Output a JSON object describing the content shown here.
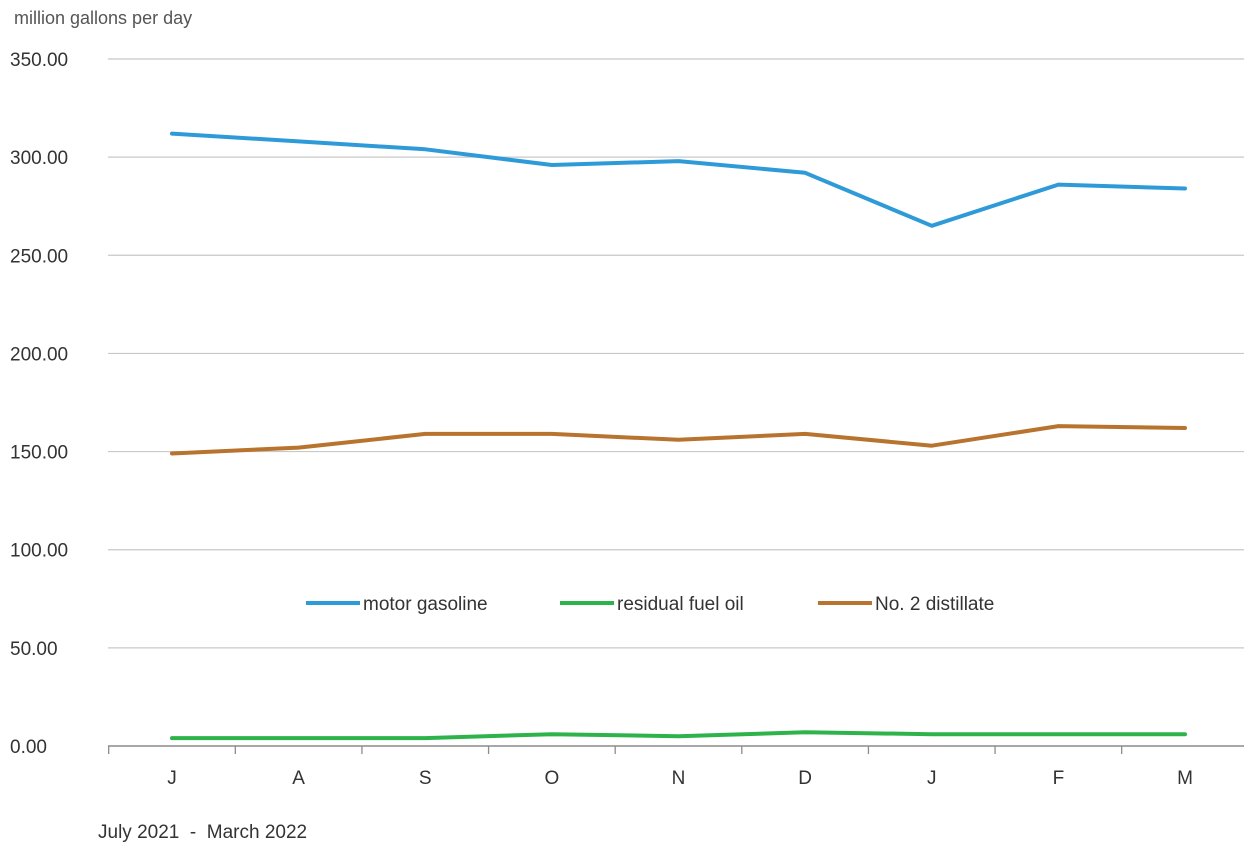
{
  "chart_data": {
    "type": "line",
    "categories": [
      "J",
      "A",
      "S",
      "O",
      "N",
      "D",
      "J",
      "F",
      "M"
    ],
    "unit_label": "million gallons per day",
    "footer": "July 2021  -  March 2022",
    "ylim": [
      0,
      350
    ],
    "yticks": [
      "0.00",
      "50.00",
      "100.00",
      "150.00",
      "200.00",
      "250.00",
      "300.00",
      "350.00"
    ],
    "grid": true,
    "legend_position": "inside-center",
    "series": [
      {
        "name": "motor gasoline",
        "color": "#2E9BD8",
        "values": [
          312,
          308,
          304,
          296,
          298,
          292,
          265,
          286,
          284
        ]
      },
      {
        "name": "residual fuel oil",
        "color": "#2DB34A",
        "values": [
          4,
          4,
          4,
          6,
          5,
          7,
          6,
          6,
          6
        ]
      },
      {
        "name": "No. 2 distillate",
        "color": "#B8732E",
        "values": [
          149,
          152,
          159,
          159,
          156,
          159,
          153,
          163,
          162
        ]
      }
    ]
  }
}
